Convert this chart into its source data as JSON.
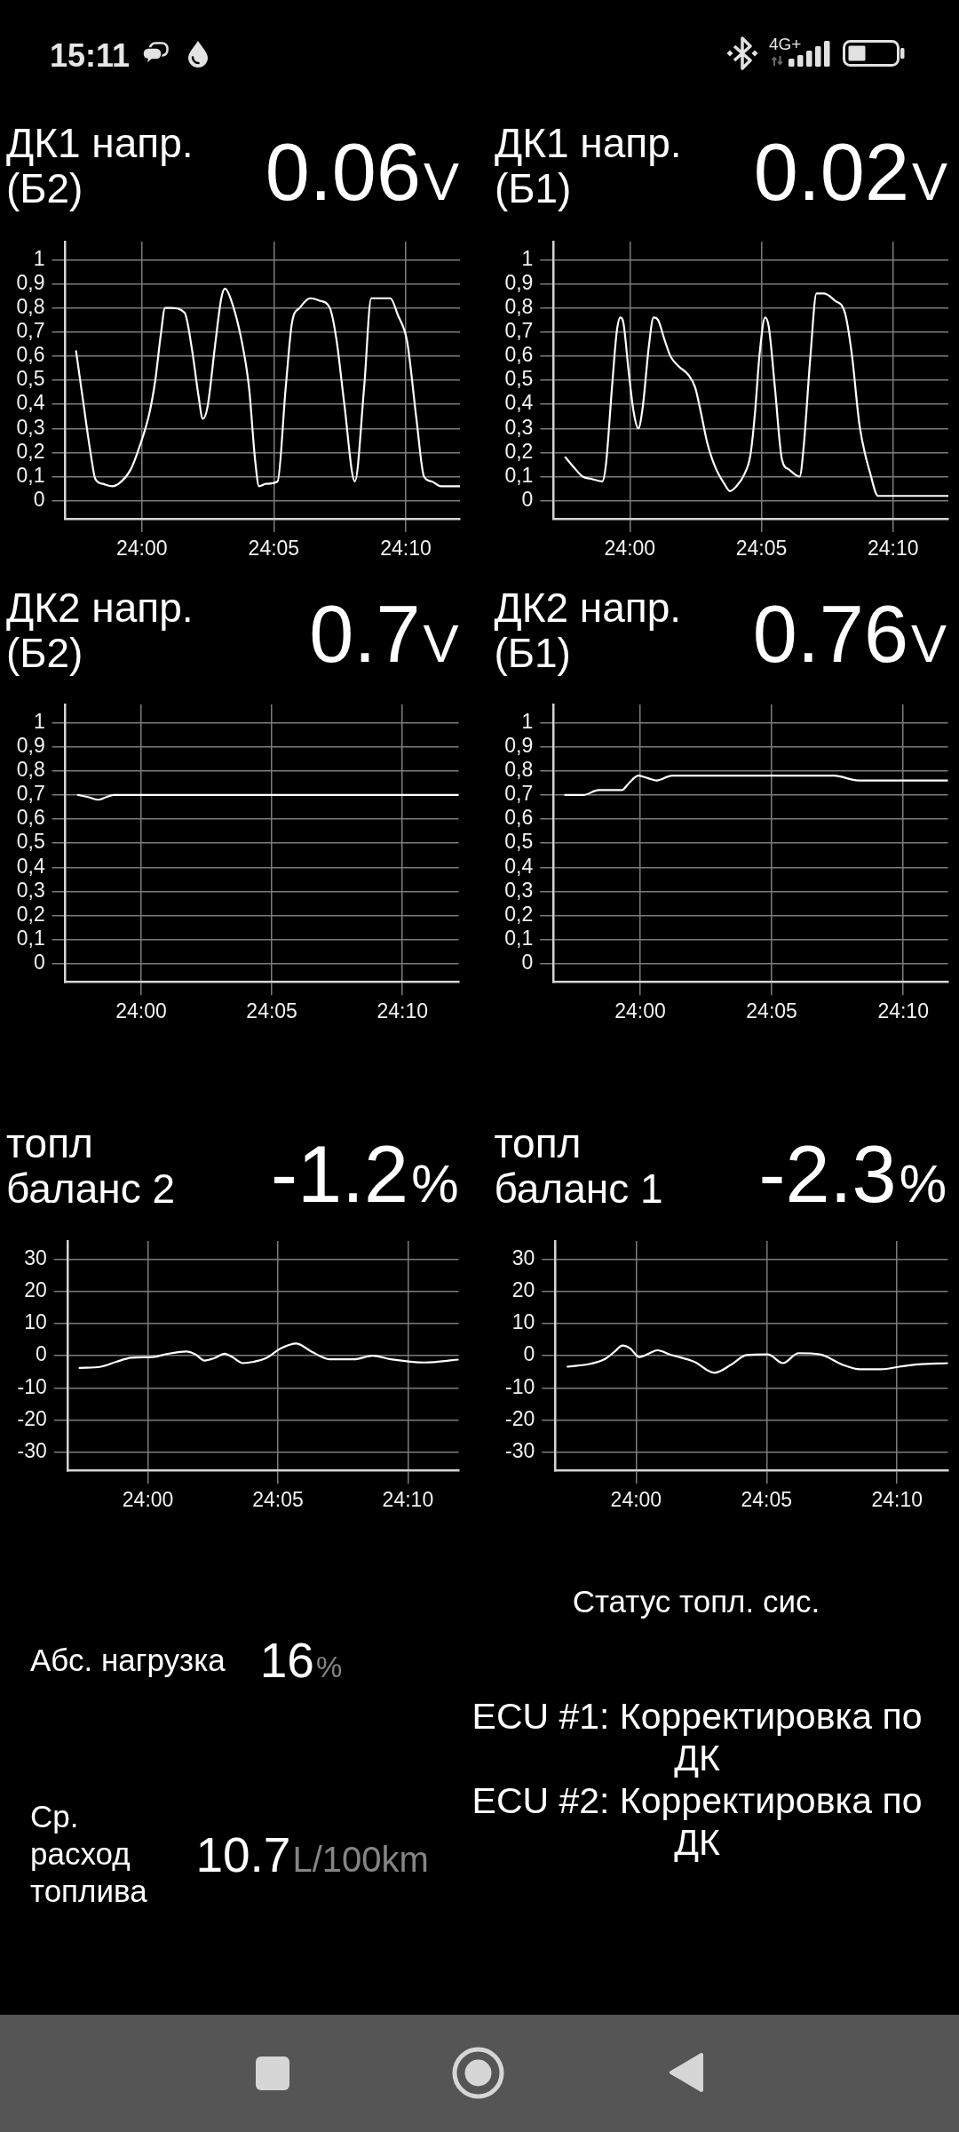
{
  "chart_data": [
    {
      "type": "other",
      "annotations": [
        "15:11",
        "4G+"
      ]
    },
    {
      "type": "line",
      "title": "ДК1 напр. (Б2)",
      "subtitle": "0.06",
      "annotations": [
        "V"
      ],
      "color": "#ffffff",
      "grid": true,
      "xlim": [
        1437.1,
        1452.05
      ],
      "ylim": [
        -0.075,
        1.075
      ],
      "xticks": [
        {
          "value": 1440,
          "label": "24:00"
        },
        {
          "value": 1445,
          "label": "24:05"
        },
        {
          "value": 1450,
          "label": "24:10"
        }
      ],
      "yticks": [
        0,
        {
          "value": 0.1,
          "label": "0,1"
        },
        {
          "value": 0.2,
          "label": "0,2"
        },
        {
          "value": 0.3,
          "label": "0,3"
        },
        {
          "value": 0.4,
          "label": "0,4"
        },
        {
          "value": 0.5,
          "label": "0,5"
        },
        {
          "value": 0.6,
          "label": "0,6"
        },
        {
          "value": 0.7,
          "label": "0,7"
        },
        {
          "value": 0.8,
          "label": "0,8"
        },
        {
          "value": 0.9,
          "label": "0,9"
        },
        1
      ],
      "x": [
        1437.51,
        1437.78,
        1438.07,
        1438.24,
        1438.53,
        1438.88,
        1439.12,
        1439.58,
        1439.93,
        1440.28,
        1440.51,
        1440.72,
        1440.88,
        1441.09,
        1441.62,
        1441.91,
        1442.14,
        1442.31,
        1442.49,
        1442.78,
        1443.01,
        1443.15,
        1443.36,
        1443.77,
        1444.06,
        1444.29,
        1444.44,
        1444.7,
        1445.14,
        1445.45,
        1445.69,
        1445.98,
        1446.38,
        1446.73,
        1447.12,
        1447.37,
        1447.66,
        1448.07,
        1448.42,
        1448.69,
        1448.83,
        1449.41,
        1449.7,
        1450.05,
        1450.4,
        1450.69,
        1450.98,
        1451.33,
        1452.05
      ],
      "values": [
        0.62,
        0.41,
        0.19,
        0.09,
        0.07,
        0.06,
        0.07,
        0.13,
        0.23,
        0.36,
        0.5,
        0.69,
        0.8,
        0.8,
        0.78,
        0.62,
        0.44,
        0.34,
        0.39,
        0.65,
        0.84,
        0.88,
        0.84,
        0.67,
        0.47,
        0.17,
        0.06,
        0.07,
        0.08,
        0.47,
        0.74,
        0.8,
        0.84,
        0.83,
        0.8,
        0.67,
        0.41,
        0.08,
        0.47,
        0.84,
        0.84,
        0.84,
        0.77,
        0.66,
        0.34,
        0.1,
        0.08,
        0.06,
        0.06
      ]
    },
    {
      "type": "line",
      "title": "ДК1 напр. (Б1)",
      "subtitle": "0.02",
      "annotations": [
        "V"
      ],
      "color": "#ffffff",
      "grid": true,
      "xlim": [
        1437.1,
        1452.1
      ],
      "ylim": [
        -0.075,
        1.075
      ],
      "xticks": [
        {
          "value": 1440,
          "label": "24:00"
        },
        {
          "value": 1445,
          "label": "24:05"
        },
        {
          "value": 1450,
          "label": "24:10"
        }
      ],
      "yticks": [
        0,
        {
          "value": 0.1,
          "label": "0,1"
        },
        {
          "value": 0.2,
          "label": "0,2"
        },
        {
          "value": 0.3,
          "label": "0,3"
        },
        {
          "value": 0.4,
          "label": "0,4"
        },
        {
          "value": 0.5,
          "label": "0,5"
        },
        {
          "value": 0.6,
          "label": "0,6"
        },
        {
          "value": 0.7,
          "label": "0,7"
        },
        {
          "value": 0.8,
          "label": "0,8"
        },
        {
          "value": 0.9,
          "label": "0,9"
        },
        1
      ],
      "x": [
        1437.55,
        1437.86,
        1438.21,
        1438.56,
        1438.95,
        1439.09,
        1439.32,
        1439.5,
        1439.64,
        1439.75,
        1439.96,
        1440.14,
        1440.32,
        1440.49,
        1440.72,
        1440.9,
        1441.07,
        1441.31,
        1441.54,
        1441.83,
        1442.24,
        1442.48,
        1442.71,
        1442.94,
        1443.24,
        1443.59,
        1443.8,
        1444.05,
        1444.35,
        1444.58,
        1444.75,
        1444.93,
        1445.14,
        1445.28,
        1445.51,
        1445.78,
        1446.04,
        1446.45,
        1446.6,
        1446.86,
        1447.09,
        1447.38,
        1447.79,
        1448.17,
        1448.43,
        1448.73,
        1449.14,
        1449.43,
        1452.1
      ],
      "values": [
        0.18,
        0.14,
        0.1,
        0.09,
        0.08,
        0.15,
        0.47,
        0.7,
        0.76,
        0.74,
        0.53,
        0.37,
        0.3,
        0.39,
        0.64,
        0.76,
        0.75,
        0.67,
        0.6,
        0.56,
        0.52,
        0.47,
        0.36,
        0.24,
        0.14,
        0.07,
        0.04,
        0.06,
        0.11,
        0.19,
        0.36,
        0.61,
        0.76,
        0.72,
        0.47,
        0.17,
        0.13,
        0.1,
        0.22,
        0.6,
        0.86,
        0.86,
        0.83,
        0.78,
        0.61,
        0.31,
        0.11,
        0.02,
        0.02
      ]
    },
    {
      "type": "line",
      "title": "ДК2 напр. (Б2)",
      "subtitle": "0.7",
      "annotations": [
        "V"
      ],
      "color": "#ffffff",
      "grid": true,
      "xlim": [
        1437.1,
        1452.15
      ],
      "ylim": [
        -0.075,
        1.075
      ],
      "xticks": [
        {
          "value": 1440,
          "label": "24:00"
        },
        {
          "value": 1445,
          "label": "24:05"
        },
        {
          "value": 1450,
          "label": "24:10"
        }
      ],
      "yticks": [
        0,
        {
          "value": 0.1,
          "label": "0,1"
        },
        {
          "value": 0.2,
          "label": "0,2"
        },
        {
          "value": 0.3,
          "label": "0,3"
        },
        {
          "value": 0.4,
          "label": "0,4"
        },
        {
          "value": 0.5,
          "label": "0,5"
        },
        {
          "value": 0.6,
          "label": "0,6"
        },
        {
          "value": 0.7,
          "label": "0,7"
        },
        {
          "value": 0.8,
          "label": "0,8"
        },
        {
          "value": 0.9,
          "label": "0,9"
        },
        1
      ],
      "x": [
        1437.58,
        1438.0,
        1438.36,
        1438.64,
        1438.94,
        1439.3,
        1452.15
      ],
      "values": [
        0.7,
        0.69,
        0.68,
        0.69,
        0.7,
        0.7,
        0.7
      ]
    },
    {
      "type": "line",
      "title": "ДК2 напр. (Б1)",
      "subtitle": "0.76",
      "annotations": [
        "V"
      ],
      "color": "#ffffff",
      "grid": true,
      "xlim": [
        1436.7,
        1451.7
      ],
      "ylim": [
        -0.075,
        1.075
      ],
      "xticks": [
        {
          "value": 1440,
          "label": "24:00"
        },
        {
          "value": 1445,
          "label": "24:05"
        },
        {
          "value": 1450,
          "label": "24:10"
        }
      ],
      "yticks": [
        0,
        {
          "value": 0.1,
          "label": "0,1"
        },
        {
          "value": 0.2,
          "label": "0,2"
        },
        {
          "value": 0.3,
          "label": "0,3"
        },
        {
          "value": 0.4,
          "label": "0,4"
        },
        {
          "value": 0.5,
          "label": "0,5"
        },
        {
          "value": 0.6,
          "label": "0,6"
        },
        {
          "value": 0.7,
          "label": "0,7"
        },
        {
          "value": 0.8,
          "label": "0,8"
        },
        {
          "value": 0.9,
          "label": "0,9"
        },
        1
      ],
      "x": [
        1437.14,
        1437.84,
        1438.42,
        1439.3,
        1439.58,
        1439.93,
        1440.28,
        1440.63,
        1441.21,
        1447.37,
        1448.3,
        1451.7
      ],
      "values": [
        0.7,
        0.7,
        0.72,
        0.72,
        0.75,
        0.78,
        0.77,
        0.76,
        0.78,
        0.78,
        0.76,
        0.76
      ]
    },
    {
      "type": "line",
      "title": "топл баланс 2",
      "subtitle": "-1.2",
      "annotations": [
        "%"
      ],
      "color": "#ffffff",
      "grid": true,
      "xlim": [
        1436.9,
        1451.95
      ],
      "ylim": [
        -35.6,
        35.6
      ],
      "xticks": [
        {
          "value": 1440,
          "label": "24:00"
        },
        {
          "value": 1445,
          "label": "24:05"
        },
        {
          "value": 1450,
          "label": "24:10"
        }
      ],
      "yticks": [
        -30,
        -20,
        -10,
        0,
        10,
        20,
        30
      ],
      "x": [
        1437.37,
        1438.19,
        1438.78,
        1439.37,
        1440.19,
        1440.77,
        1441.48,
        1441.83,
        1442.18,
        1442.54,
        1442.96,
        1443.24,
        1443.66,
        1444.06,
        1444.53,
        1445.12,
        1445.7,
        1446.29,
        1446.99,
        1447.93,
        1448.64,
        1449.34,
        1450.63,
        1451.95
      ],
      "values": [
        -3.8,
        -3.4,
        -1.9,
        -0.6,
        -0.4,
        0.6,
        1.3,
        0.4,
        -1.5,
        -0.8,
        0.6,
        -0.4,
        -2.3,
        -1.9,
        -0.8,
        2.3,
        3.8,
        1.3,
        -1.1,
        -1.1,
        0,
        -1.1,
        -2.1,
        -1.2
      ]
    },
    {
      "type": "line",
      "title": "топл баланс 1",
      "subtitle": "-2.3",
      "annotations": [
        "%"
      ],
      "color": "#ffffff",
      "grid": true,
      "xlim": [
        1436.9,
        1451.95
      ],
      "ylim": [
        -35.6,
        35.6
      ],
      "xticks": [
        {
          "value": 1440,
          "label": "24:00"
        },
        {
          "value": 1445,
          "label": "24:05"
        },
        {
          "value": 1450,
          "label": "24:10"
        }
      ],
      "yticks": [
        -30,
        -20,
        -10,
        0,
        10,
        20,
        30
      ],
      "x": [
        1437.37,
        1438.24,
        1438.83,
        1439.18,
        1439.48,
        1439.77,
        1440.12,
        1440.47,
        1440.82,
        1441.29,
        1442.23,
        1443.0,
        1443.64,
        1444.23,
        1445.05,
        1445.63,
        1446.22,
        1447.04,
        1447.98,
        1448.57,
        1449.39,
        1450.09,
        1450.8,
        1451.95
      ],
      "values": [
        -3.4,
        -2.5,
        -0.9,
        1.3,
        3.2,
        2.3,
        -0.4,
        0.6,
        1.7,
        0.4,
        -1.9,
        -5.3,
        -2.8,
        0.2,
        0.4,
        -2.3,
        0.8,
        0.4,
        -3.0,
        -4.2,
        -4.2,
        -3.4,
        -2.7,
        -2.3
      ]
    },
    {
      "type": "other",
      "annotations": [
        "Абс. нагрузка",
        "16",
        "%",
        "Ср. расход топлива",
        "10.7",
        "L/100km",
        "Статус топл. сис.",
        "ECU #1: Корректировка по ДК",
        "ECU #2: Корректировка по ДК"
      ]
    }
  ]
}
